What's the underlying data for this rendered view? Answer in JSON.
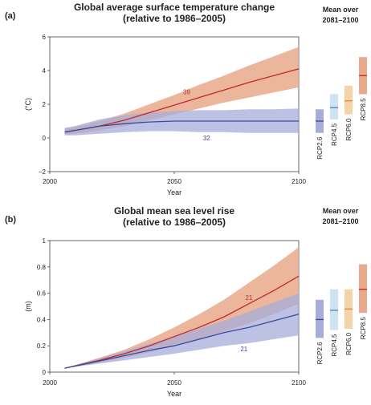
{
  "chart_data": [
    {
      "panel_label": "(a)",
      "type": "line",
      "title": "Global average surface temperature change",
      "subtitle": "(relative to 1986–2005)",
      "xlabel": "Year",
      "ylabel": "(°C)",
      "xlim": [
        2000,
        2100
      ],
      "ylim": [
        -2,
        6
      ],
      "x_ticks": [
        "2000",
        "2050",
        "2100"
      ],
      "y_ticks": [
        "−2",
        "0",
        "2",
        "4",
        "6"
      ],
      "grid": false,
      "series": [
        {
          "name": "",
          "color": "#c0282c",
          "band_color": "#e9a98c",
          "annotation": "39",
          "x": [
            2006,
            2010,
            2020,
            2030,
            2040,
            2050,
            2060,
            2070,
            2080,
            2090,
            2100
          ],
          "y": [
            0.35,
            0.45,
            0.7,
            1.05,
            1.5,
            1.95,
            2.4,
            2.85,
            3.3,
            3.7,
            4.1
          ],
          "lower": [
            0.2,
            0.25,
            0.45,
            0.7,
            1.05,
            1.4,
            1.75,
            2.1,
            2.4,
            2.7,
            3.0
          ],
          "upper": [
            0.55,
            0.65,
            1.0,
            1.45,
            2.0,
            2.55,
            3.15,
            3.7,
            4.3,
            4.85,
            5.4
          ]
        },
        {
          "name": "",
          "color": "#3a4a9a",
          "band_color": "#a7acdb",
          "annotation": "32",
          "x": [
            2006,
            2010,
            2020,
            2030,
            2040,
            2050,
            2060,
            2070,
            2080,
            2090,
            2100
          ],
          "y": [
            0.35,
            0.45,
            0.7,
            0.85,
            0.95,
            1.0,
            1.0,
            1.0,
            1.0,
            1.0,
            1.0
          ],
          "lower": [
            0.15,
            0.15,
            0.25,
            0.35,
            0.4,
            0.4,
            0.35,
            0.35,
            0.3,
            0.3,
            0.3
          ],
          "upper": [
            0.6,
            0.7,
            1.1,
            1.35,
            1.5,
            1.6,
            1.65,
            1.65,
            1.7,
            1.7,
            1.75
          ]
        }
      ],
      "side_panel": {
        "heading_1": "Mean over",
        "heading_2": "2081–2100",
        "bars": [
          {
            "name": "RCP2.6",
            "mean": 1.0,
            "low": 0.3,
            "high": 1.7,
            "color": "#a7acdb",
            "line_color": "#3a4a9a"
          },
          {
            "name": "RCP4.5",
            "mean": 1.8,
            "low": 1.1,
            "high": 2.6,
            "color": "#cfe3f4",
            "line_color": "#4c80c0"
          },
          {
            "name": "RCP6.0",
            "mean": 2.2,
            "low": 1.4,
            "high": 3.1,
            "color": "#f5d3a8",
            "line_color": "#e08a2a"
          },
          {
            "name": "RCP8.5",
            "mean": 3.7,
            "low": 2.6,
            "high": 4.8,
            "color": "#e9a98c",
            "line_color": "#c0282c"
          }
        ]
      }
    },
    {
      "panel_label": "(b)",
      "type": "line",
      "title": "Global mean sea level rise",
      "subtitle": "(relative to 1986–2005)",
      "xlabel": "Year",
      "ylabel": "(m)",
      "xlim": [
        2000,
        2100
      ],
      "ylim": [
        0,
        1
      ],
      "x_ticks": [
        "2000",
        "2050",
        "2100"
      ],
      "y_ticks": [
        "0",
        "0.2",
        "0.4",
        "0.6",
        "0.8",
        "1"
      ],
      "grid": false,
      "series": [
        {
          "name": "",
          "color": "#c0282c",
          "band_color": "#e9a98c",
          "annotation": "21",
          "x": [
            2006,
            2020,
            2030,
            2040,
            2050,
            2060,
            2070,
            2080,
            2090,
            2100
          ],
          "y": [
            0.03,
            0.09,
            0.14,
            0.2,
            0.27,
            0.34,
            0.42,
            0.52,
            0.62,
            0.73
          ],
          "lower": [
            0.03,
            0.07,
            0.11,
            0.15,
            0.2,
            0.25,
            0.31,
            0.37,
            0.44,
            0.52
          ],
          "upper": [
            0.03,
            0.11,
            0.17,
            0.25,
            0.34,
            0.44,
            0.55,
            0.68,
            0.81,
            0.95
          ]
        },
        {
          "name": "",
          "color": "#3a4a9a",
          "band_color": "#a7acdb",
          "annotation": "21",
          "x": [
            2006,
            2020,
            2030,
            2040,
            2050,
            2060,
            2070,
            2080,
            2090,
            2100
          ],
          "y": [
            0.03,
            0.085,
            0.125,
            0.165,
            0.2,
            0.25,
            0.3,
            0.34,
            0.39,
            0.44
          ],
          "lower": [
            0.03,
            0.065,
            0.09,
            0.115,
            0.14,
            0.17,
            0.2,
            0.22,
            0.25,
            0.28
          ],
          "upper": [
            0.03,
            0.105,
            0.16,
            0.215,
            0.27,
            0.33,
            0.39,
            0.46,
            0.53,
            0.6
          ]
        }
      ],
      "side_panel": {
        "heading_1": "Mean over",
        "heading_2": "2081–2100",
        "bars": [
          {
            "name": "RCP2.6",
            "mean": 0.4,
            "low": 0.26,
            "high": 0.55,
            "color": "#a7acdb",
            "line_color": "#3a4a9a"
          },
          {
            "name": "RCP4.5",
            "mean": 0.47,
            "low": 0.32,
            "high": 0.63,
            "color": "#cfe3f4",
            "line_color": "#4c80c0"
          },
          {
            "name": "RCP6.0",
            "mean": 0.48,
            "low": 0.33,
            "high": 0.63,
            "color": "#f5d3a8",
            "line_color": "#e08a2a"
          },
          {
            "name": "RCP8.5",
            "mean": 0.63,
            "low": 0.45,
            "high": 0.82,
            "color": "#e9a98c",
            "line_color": "#c0282c"
          }
        ]
      }
    }
  ]
}
